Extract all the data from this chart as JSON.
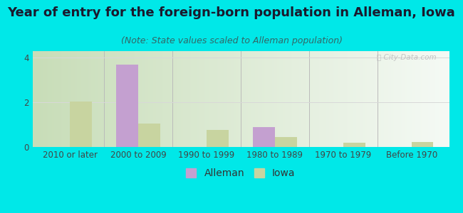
{
  "title": "Year of entry for the foreign-born population in Alleman, Iowa",
  "subtitle": "(Note: State values scaled to Alleman population)",
  "categories": [
    "2010 or later",
    "2000 to 2009",
    "1990 to 1999",
    "1980 to 1989",
    "1970 to 1979",
    "Before 1970"
  ],
  "alleman_values": [
    0,
    3.7,
    0,
    0.9,
    0,
    0
  ],
  "iowa_values": [
    2.05,
    1.05,
    0.75,
    0.45,
    0.18,
    0.22
  ],
  "alleman_color": "#c4a0d0",
  "iowa_color": "#c8d4a0",
  "ylim": [
    0,
    4.3
  ],
  "yticks": [
    0,
    2,
    4
  ],
  "outer_background": "#00e8e8",
  "plot_bg_left": "#c8ddb8",
  "plot_bg_right": "#f5faf5",
  "grid_color": "#d8d8d8",
  "title_fontsize": 13,
  "subtitle_fontsize": 9,
  "tick_fontsize": 8.5,
  "legend_fontsize": 10,
  "bar_width": 0.32,
  "figsize": [
    6.5,
    3.0
  ],
  "dpi": 100
}
